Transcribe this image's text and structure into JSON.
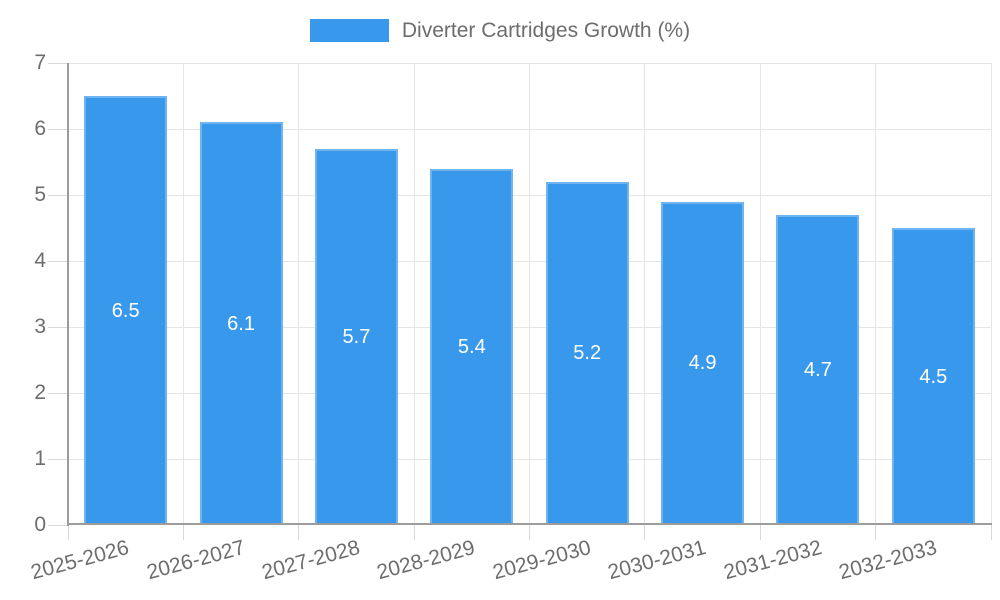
{
  "chart_data": {
    "type": "bar",
    "title": "Diverter Cartridges Growth (%)",
    "categories": [
      "2025-2026",
      "2026-2027",
      "2027-2028",
      "2028-2029",
      "2029-2030",
      "2030-2031",
      "2031-2032",
      "2032-2033"
    ],
    "values": [
      6.5,
      6.1,
      5.7,
      5.4,
      5.2,
      4.9,
      4.7,
      4.5
    ],
    "value_labels": [
      "6.5",
      "6.1",
      "5.7",
      "5.4",
      "5.2",
      "4.9",
      "4.7",
      "4.5"
    ],
    "xlabel": "",
    "ylabel": "",
    "ylim": [
      0,
      7
    ],
    "yticks": [
      0,
      1,
      2,
      3,
      4,
      5,
      6,
      7
    ],
    "grid": true,
    "legend_position": "top",
    "colors": {
      "bar_fill": "#3899ec",
      "bar_border": "#6fb3f0",
      "bar_label": "#ffffff",
      "axis_text": "#6d6d6d",
      "grid_line": "#e5e5e5",
      "axis_line": "#9c9c9c",
      "tick_mark": "#d9d9d9",
      "background": "#ffffff"
    }
  }
}
